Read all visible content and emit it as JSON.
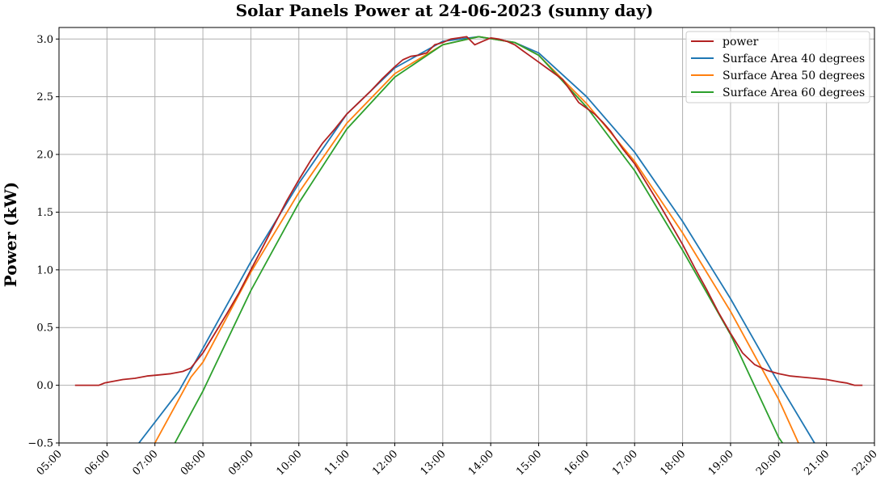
{
  "chart_data": {
    "type": "line",
    "title": "Solar Panels Power at 24-06-2023 (sunny day)",
    "xlabel": "",
    "ylabel": "Power (kW)",
    "grid": true,
    "legend_position": "top-right",
    "xlim": [
      "05:00",
      "22:00"
    ],
    "ylim": [
      -0.5,
      3.1
    ],
    "x_ticks": [
      "05:00",
      "06:00",
      "07:00",
      "08:00",
      "09:00",
      "10:00",
      "11:00",
      "12:00",
      "13:00",
      "14:00",
      "15:00",
      "16:00",
      "17:00",
      "18:00",
      "19:00",
      "20:00",
      "21:00",
      "22:00"
    ],
    "y_ticks": [
      "−0.5",
      "0.0",
      "0.5",
      "1.0",
      "1.5",
      "2.0",
      "2.5",
      "3.0"
    ],
    "series": [
      {
        "name": "power",
        "color": "#b22222",
        "x": [
          "05:20",
          "05:35",
          "05:50",
          "05:57",
          "06:05",
          "06:20",
          "06:35",
          "06:50",
          "07:05",
          "07:20",
          "07:35",
          "07:45",
          "08:00",
          "08:15",
          "08:30",
          "08:45",
          "09:00",
          "09:15",
          "09:30",
          "09:45",
          "10:00",
          "10:15",
          "10:30",
          "10:45",
          "11:00",
          "11:15",
          "11:30",
          "11:45",
          "12:00",
          "12:10",
          "12:20",
          "12:30",
          "12:40",
          "12:50",
          "13:00",
          "13:10",
          "13:20",
          "13:30",
          "13:40",
          "13:50",
          "14:00",
          "14:10",
          "14:20",
          "14:30",
          "14:40",
          "14:50",
          "15:00",
          "15:10",
          "15:20",
          "15:30",
          "15:40",
          "15:50",
          "16:00",
          "16:10",
          "16:20",
          "16:30",
          "16:45",
          "17:00",
          "17:15",
          "17:30",
          "17:45",
          "18:00",
          "18:15",
          "18:30",
          "18:45",
          "19:00",
          "19:15",
          "19:30",
          "19:45",
          "20:00",
          "20:15",
          "20:30",
          "20:45",
          "21:00",
          "21:15",
          "21:25",
          "21:35",
          "21:45"
        ],
        "values": [
          0.0,
          0.0,
          0.0,
          0.02,
          0.03,
          0.05,
          0.06,
          0.08,
          0.09,
          0.1,
          0.12,
          0.15,
          0.28,
          0.45,
          0.62,
          0.8,
          1.0,
          1.2,
          1.4,
          1.6,
          1.78,
          1.95,
          2.1,
          2.22,
          2.35,
          2.45,
          2.55,
          2.66,
          2.76,
          2.82,
          2.85,
          2.86,
          2.88,
          2.95,
          2.97,
          3.0,
          3.01,
          3.02,
          2.95,
          2.98,
          3.01,
          3.0,
          2.98,
          2.95,
          2.9,
          2.85,
          2.8,
          2.75,
          2.7,
          2.65,
          2.55,
          2.45,
          2.4,
          2.35,
          2.28,
          2.2,
          2.05,
          1.92,
          1.75,
          1.58,
          1.4,
          1.22,
          1.02,
          0.83,
          0.63,
          0.45,
          0.28,
          0.18,
          0.13,
          0.1,
          0.08,
          0.07,
          0.06,
          0.05,
          0.03,
          0.02,
          0.0,
          0.0
        ]
      },
      {
        "name": "Surface Area 40 degrees",
        "color": "#1f77b4",
        "x": [
          "06:40",
          "07:30",
          "08:00",
          "09:00",
          "10:00",
          "11:00",
          "12:00",
          "13:00",
          "13:45",
          "14:30",
          "15:00",
          "16:00",
          "17:00",
          "18:00",
          "19:00",
          "20:00",
          "20:45"
        ],
        "values": [
          -0.5,
          -0.05,
          0.32,
          1.07,
          1.75,
          2.35,
          2.75,
          2.98,
          3.02,
          2.97,
          2.88,
          2.5,
          2.02,
          1.42,
          0.75,
          0.02,
          -0.5
        ]
      },
      {
        "name": "Surface Area 50 degrees",
        "color": "#ff7f0e",
        "x": [
          "07:00",
          "07:45",
          "08:00",
          "09:00",
          "10:00",
          "11:00",
          "12:00",
          "13:00",
          "13:45",
          "14:30",
          "15:00",
          "16:00",
          "17:00",
          "18:00",
          "19:00",
          "20:00",
          "20:25"
        ],
        "values": [
          -0.5,
          0.07,
          0.2,
          0.98,
          1.67,
          2.27,
          2.7,
          2.95,
          3.02,
          2.97,
          2.86,
          2.44,
          1.94,
          1.32,
          0.64,
          -0.12,
          -0.5
        ]
      },
      {
        "name": "Surface Area 60 degrees",
        "color": "#2ca02c",
        "x": [
          "07:25",
          "08:00",
          "09:00",
          "10:00",
          "11:00",
          "12:00",
          "13:00",
          "13:45",
          "14:30",
          "15:00",
          "16:00",
          "17:00",
          "18:00",
          "19:00",
          "20:00",
          "20:05"
        ],
        "values": [
          -0.5,
          -0.05,
          0.82,
          1.58,
          2.22,
          2.67,
          2.95,
          3.02,
          2.97,
          2.86,
          2.41,
          1.86,
          1.17,
          0.44,
          -0.45,
          -0.5
        ]
      }
    ]
  }
}
